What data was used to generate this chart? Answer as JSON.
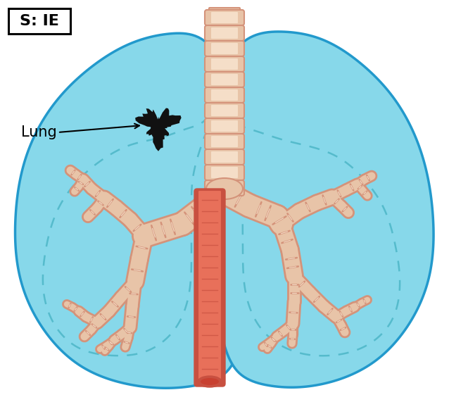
{
  "bg_color": "#ffffff",
  "lung_fill": "#87D8EA",
  "lung_stroke": "#2299CC",
  "trachea_fill": "#E8C4A8",
  "trachea_stroke": "#D4937A",
  "vessel_fill": "#E8705A",
  "vessel_stroke": "#C85040",
  "tumor_color": "#111111",
  "dashed_color": "#55BBCC",
  "label_text": "Lung",
  "badge_text": "S: IE",
  "fig_width": 6.38,
  "fig_height": 5.71,
  "lung_fill_light": "#A8E0F0"
}
